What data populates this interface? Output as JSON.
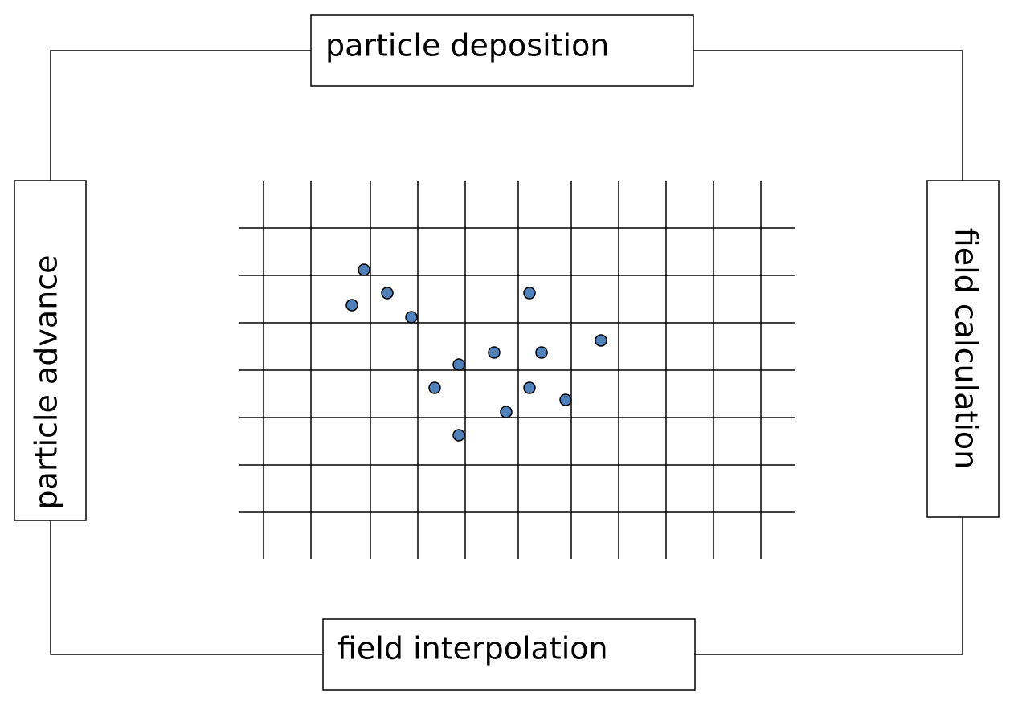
{
  "nodes": [
    {
      "label": "particle deposition"
    },
    {
      "label": "field calculation"
    },
    {
      "label": "field interpolation"
    },
    {
      "label": "particle advance"
    }
  ]
}
